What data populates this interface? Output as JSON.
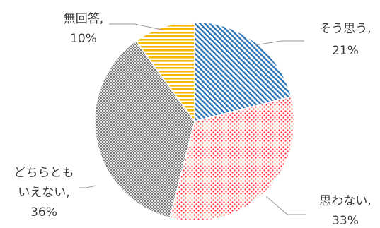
{
  "chart_data": {
    "type": "pie",
    "slices": [
      {
        "label": "そう思う,",
        "value": 21,
        "value_text": "21%",
        "color": "#2e75b6",
        "pattern": "diagonal-stripes"
      },
      {
        "label": "思わない,",
        "value": 33,
        "value_text": "33%",
        "color": "#ff2d2d",
        "pattern": "dots"
      },
      {
        "label_lines": [
          "どちらとも",
          "いえない,"
        ],
        "value": 36,
        "value_text": "36%",
        "color": "#8a8a8a",
        "pattern": "checker"
      },
      {
        "label": "無回答,",
        "value": 10,
        "value_text": "10%",
        "color": "#f5b800",
        "pattern": "horizontal-stripes"
      }
    ],
    "start_angle_deg": 0,
    "direction": "clockwise",
    "legend": "none"
  }
}
